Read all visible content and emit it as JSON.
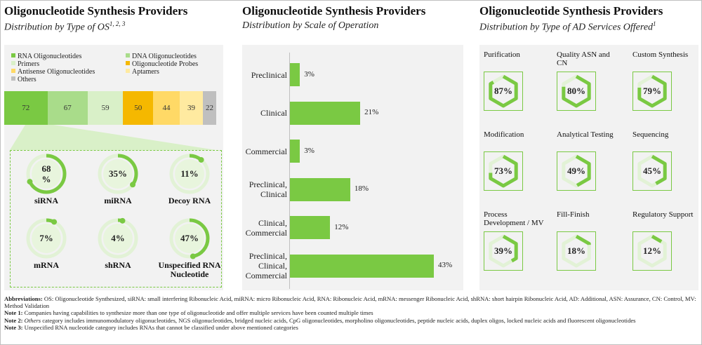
{
  "panel1": {
    "title": "Oligonucleotide Synthesis Providers",
    "subtitle": "Distribution by Type of OS",
    "subtitle_sup": "1, 2, 3",
    "legend": [
      {
        "label": "RNA Oligonucleotides",
        "color": "#7ac943"
      },
      {
        "label": "DNA Oligonucleotides",
        "color": "#a9dc8a"
      },
      {
        "label": "Primers",
        "color": "#d9f0c8"
      },
      {
        "label": "Oligonucleotide Probes",
        "color": "#f5b800"
      },
      {
        "label": "Antisense Oligonucleotides",
        "color": "#ffd966"
      },
      {
        "label": "Aptamers",
        "color": "#ffeaa0"
      },
      {
        "label": "Others",
        "color": "#bfbfbf"
      }
    ],
    "stack_values": [
      {
        "value": "72",
        "color": "#7ac943"
      },
      {
        "value": "67",
        "color": "#a9dc8a"
      },
      {
        "value": "59",
        "color": "#d9f0c8"
      },
      {
        "value": "50",
        "color": "#f5b800"
      },
      {
        "value": "44",
        "color": "#ffd966"
      },
      {
        "value": "39",
        "color": "#ffeaa0"
      },
      {
        "value": "22",
        "color": "#bfbfbf"
      }
    ],
    "rna_types": [
      {
        "label": "siRNA",
        "value_text": "68\n%",
        "pct": 68
      },
      {
        "label": "miRNA",
        "value_text": "35%",
        "pct": 35
      },
      {
        "label": "Decoy RNA",
        "value_text": "11%",
        "pct": 11
      },
      {
        "label": "mRNA",
        "value_text": "7%",
        "pct": 7
      },
      {
        "label": "shRNA",
        "value_text": "4%",
        "pct": 4
      },
      {
        "label": "Unspecified RNA Nucleotide",
        "value_text": "47%",
        "pct": 47
      }
    ]
  },
  "panel2": {
    "title": "Oligonucleotide Synthesis Providers",
    "subtitle": "Distribution by Scale of Operation"
  },
  "panel3": {
    "title": "Oligonucleotide Synthesis Providers",
    "subtitle": "Distribution by Type of AD Services Offered",
    "subtitle_sup": "1",
    "services": [
      {
        "label": "Purification",
        "value_text": "87%",
        "pct": 87
      },
      {
        "label": "Quality ASN and CN",
        "value_text": "80%",
        "pct": 80
      },
      {
        "label": "Custom Synthesis",
        "value_text": "79%",
        "pct": 79
      },
      {
        "label": "Modification",
        "value_text": "73%",
        "pct": 73
      },
      {
        "label": "Analytical Testing",
        "value_text": "49%",
        "pct": 49
      },
      {
        "label": "Sequencing",
        "value_text": "45%",
        "pct": 45
      },
      {
        "label": "Process Development / MV",
        "value_text": "39%",
        "pct": 39
      },
      {
        "label": "Fill-Finish",
        "value_text": "18%",
        "pct": 18
      },
      {
        "label": "Regulatory Support",
        "value_text": "12%",
        "pct": 12
      }
    ]
  },
  "chart_data": [
    {
      "type": "bar",
      "orientation": "horizontal-stacked",
      "title": "Oligonucleotide Synthesis Providers",
      "subtitle": "Distribution by Type of OS",
      "categories": [
        "RNA Oligonucleotides",
        "DNA Oligonucleotides",
        "Primers",
        "Oligonucleotide Probes",
        "Antisense Oligonucleotides",
        "Aptamers",
        "Others"
      ],
      "values": [
        72,
        67,
        59,
        50,
        44,
        39,
        22
      ]
    },
    {
      "type": "bar",
      "orientation": "horizontal",
      "title": "Oligonucleotide Synthesis Providers",
      "subtitle": "Distribution by Scale of Operation",
      "categories": [
        "Preclinical",
        "Clinical",
        "Commercial",
        "Preclinical, Clinical",
        "Clinical, Commercial",
        "Preclinical, Clinical, Commercial"
      ],
      "values": [
        3,
        21,
        3,
        18,
        12,
        43
      ],
      "value_labels": [
        "3%",
        "21%",
        "3%",
        "18%",
        "12%",
        "43%"
      ],
      "grid": false
    }
  ],
  "notes": {
    "abbrev_label": "Abbreviations:",
    "abbrev_text": " OS: Oligonucleotide Synthesized, siRNA: small interfering Ribonucleic Acid, miRNA: micro Ribonucleic Acid, RNA: Ribonucleic Acid, mRNA: messenger Ribonucleic Acid, shRNA: short hairpin Ribonucleic Acid, AD: Additional, ASN: Assurance, CN: Control, MV: Method Validation",
    "note1_label": "Note 1:",
    "note1_text": " Companies having capabilities to synthesize more than one type of oligonucleotide and offer multiple services have been counted multiple times",
    "note2_label": "Note 2:",
    "note2_italic": " Others",
    "note2_text": " category includes immunomodulatory oligonucleotides, NGS oligonucleotides, bridged nucleic acids, CpG oligonucleotides, morpholino oligonucleotides, peptide nucleic acids, duplex oligos, locked nucleic acids and fluorescent oligonucleotides",
    "note3_label": "Note 3:",
    "note3_text": " Unspecified RNA nucleotide category includes RNAs that cannot be classified under above mentioned categories"
  }
}
